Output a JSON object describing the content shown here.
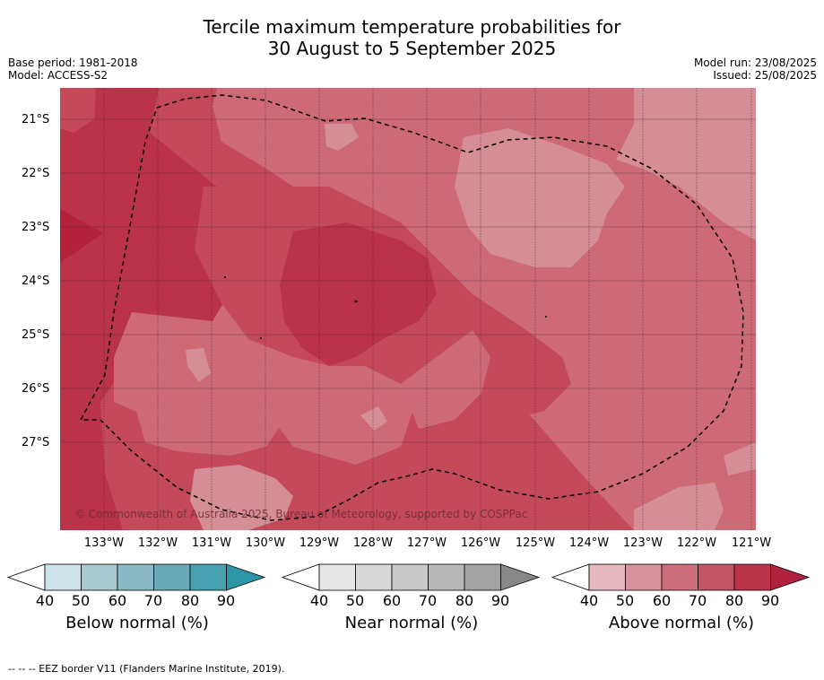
{
  "title_line1": "Tercile maximum temperature probabilities for",
  "title_line2": "30 August to 5 September 2025",
  "base_period": "Base period: 1981-2018",
  "model": "Model: ACCESS-S2",
  "model_run": "Model run: 23/08/2025",
  "issued": "Issued: 25/08/2025",
  "copyright": "© Commonwealth of Australia 2025, Bureau of Meteorology, supported by COSPPac",
  "lat_labels": [
    "21°S",
    "22°S",
    "23°S",
    "24°S",
    "25°S",
    "26°S",
    "27°S"
  ],
  "lon_labels": [
    "133°W",
    "132°W",
    "131°W",
    "130°W",
    "129°W",
    "128°W",
    "127°W",
    "126°W",
    "125°W",
    "124°W",
    "123°W",
    "122°W",
    "121°W"
  ],
  "legends": [
    {
      "label": "Below normal (%)",
      "ticks": [
        "40",
        "50",
        "60",
        "70",
        "80",
        "90"
      ],
      "colors": [
        "#cde4e9",
        "#a7c8cf",
        "#8ab9c5",
        "#6aaab8",
        "#47a0b0",
        "#2d96a6"
      ]
    },
    {
      "label": "Near normal (%)",
      "ticks": [
        "40",
        "50",
        "60",
        "70",
        "80",
        "90"
      ],
      "colors": [
        "#e6e6e6",
        "#d8d8d8",
        "#c9c9c9",
        "#b9b9b9",
        "#a3a3a3",
        "#878787"
      ]
    },
    {
      "label": "Above normal (%)",
      "ticks": [
        "40",
        "50",
        "60",
        "70",
        "80",
        "90"
      ],
      "colors": [
        "#e6b8c0",
        "#d9939e",
        "#cd6e7c",
        "#c35563",
        "#bb3549",
        "#b0223d"
      ]
    }
  ],
  "colors": {
    "above_50": "#d58d96",
    "above_60": "#cd6a76",
    "above_70": "#c44a5a",
    "above_80": "#bb3349",
    "above_90": "#b4213b"
  },
  "footer": "--  --  -- EEZ border V11 (Flanders Marine Institute, 2019)."
}
